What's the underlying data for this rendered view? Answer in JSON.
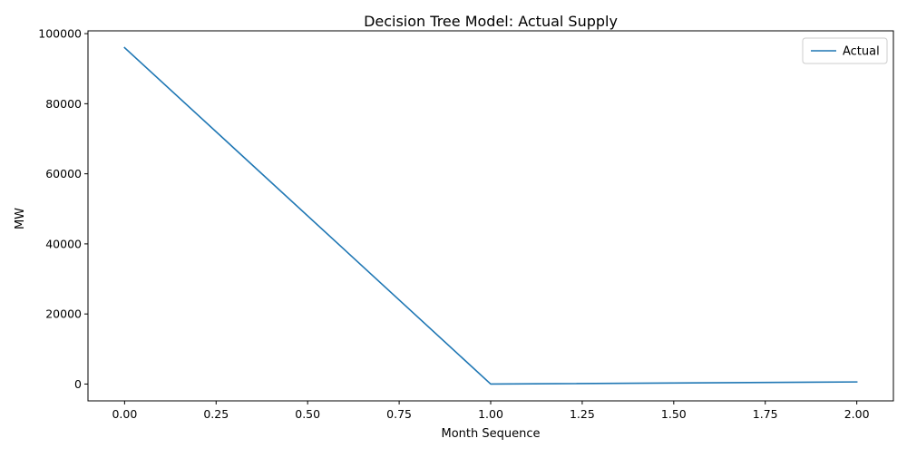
{
  "chart_data": {
    "type": "line",
    "title": "Decision Tree Model: Actual Supply",
    "xlabel": "Month Sequence",
    "ylabel": "MW",
    "x": [
      0,
      1,
      2
    ],
    "series": [
      {
        "name": "Actual",
        "color": "#1f77b4",
        "values": [
          96000,
          0,
          600
        ]
      }
    ],
    "xlim": [
      -0.1,
      2.1
    ],
    "ylim": [
      -4800,
      100800
    ],
    "xticks": [
      0.0,
      0.25,
      0.5,
      0.75,
      1.0,
      1.25,
      1.5,
      1.75,
      2.0
    ],
    "xtick_labels": [
      "0.00",
      "0.25",
      "0.50",
      "0.75",
      "1.00",
      "1.25",
      "1.50",
      "1.75",
      "2.00"
    ],
    "yticks": [
      0,
      20000,
      40000,
      60000,
      80000,
      100000
    ],
    "ytick_labels": [
      "0",
      "20000",
      "40000",
      "60000",
      "80000",
      "100000"
    ],
    "grid": false,
    "legend": "top-right"
  }
}
